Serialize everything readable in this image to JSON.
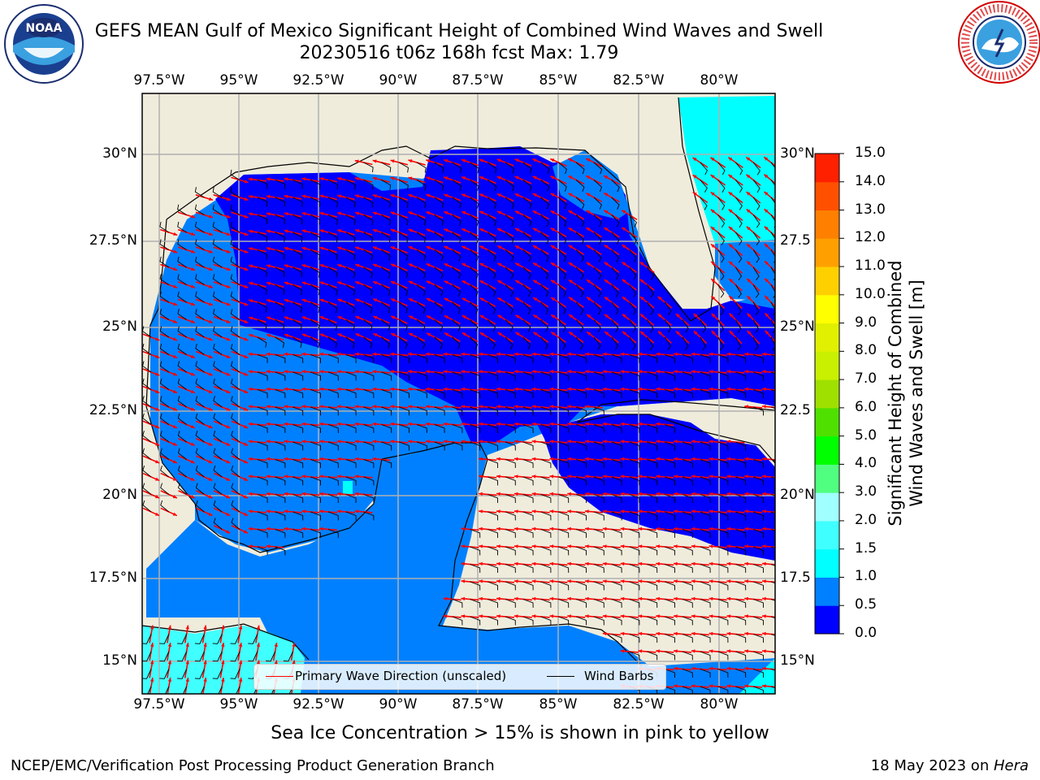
{
  "title_line1": "GEFS MEAN Gulf of Mexico Significant Height of Combined Wind Waves and Swell",
  "title_line2": "20230516 t06z 168h fcst   Max: 1.79",
  "lon_labels": [
    "97.5°W",
    "95°W",
    "92.5°W",
    "90°W",
    "87.5°W",
    "85°W",
    "82.5°W",
    "80°W"
  ],
  "lat_labels": [
    "30°N",
    "27.5°N",
    "25°N",
    "22.5°N",
    "20°N",
    "17.5°N",
    "15°N"
  ],
  "lat_labels_right": [
    "30°N",
    "27.5",
    "25°N",
    "22.5",
    "20°N",
    "17.5",
    "15°N"
  ],
  "legend": {
    "wave_label": "Primary Wave Direction (unscaled)",
    "barb_label": "Wind Barbs",
    "wave_color": "#ff0000",
    "barb_color": "#000000"
  },
  "colorbar": {
    "title_line1": "Significant Height of Combined",
    "title_line2": "Wind Waves and Swell [m]",
    "ticks": [
      "15.0",
      "14.0",
      "13.0",
      "12.0",
      "11.0",
      "10.0",
      "9.0",
      "8.0",
      "7.0",
      "6.0",
      "5.0",
      "4.0",
      "3.0",
      "2.0",
      "1.5",
      "1.0",
      "0.5",
      "0.0"
    ],
    "colors_bottom_to_top": [
      "#0000ff",
      "#0080ff",
      "#00ffff",
      "#40ffff",
      "#a0ffff",
      "#50ff80",
      "#00ff00",
      "#50e000",
      "#a0e000",
      "#c8f000",
      "#e0f000",
      "#ffff00",
      "#ffd000",
      "#ffa000",
      "#ff8000",
      "#ff5000",
      "#ff2000"
    ]
  },
  "colors": {
    "land": "#efecdc",
    "wave_0_05": "#0000ff",
    "wave_05_10": "#0080ff",
    "wave_10_15": "#00ffff",
    "wave_15_20": "#40ffff",
    "grid": "#b0b0b0"
  },
  "bottom_note": "Sea Ice Concentration > 15% is shown in pink to yellow",
  "footer_left": "NCEP/EMC/Verification Post Processing Product Generation Branch",
  "footer_right_prefix": "18 May 2023 on ",
  "footer_right_host": "Hera",
  "logos": {
    "left": "noaa-logo",
    "right": "national-weather-service-logo"
  }
}
